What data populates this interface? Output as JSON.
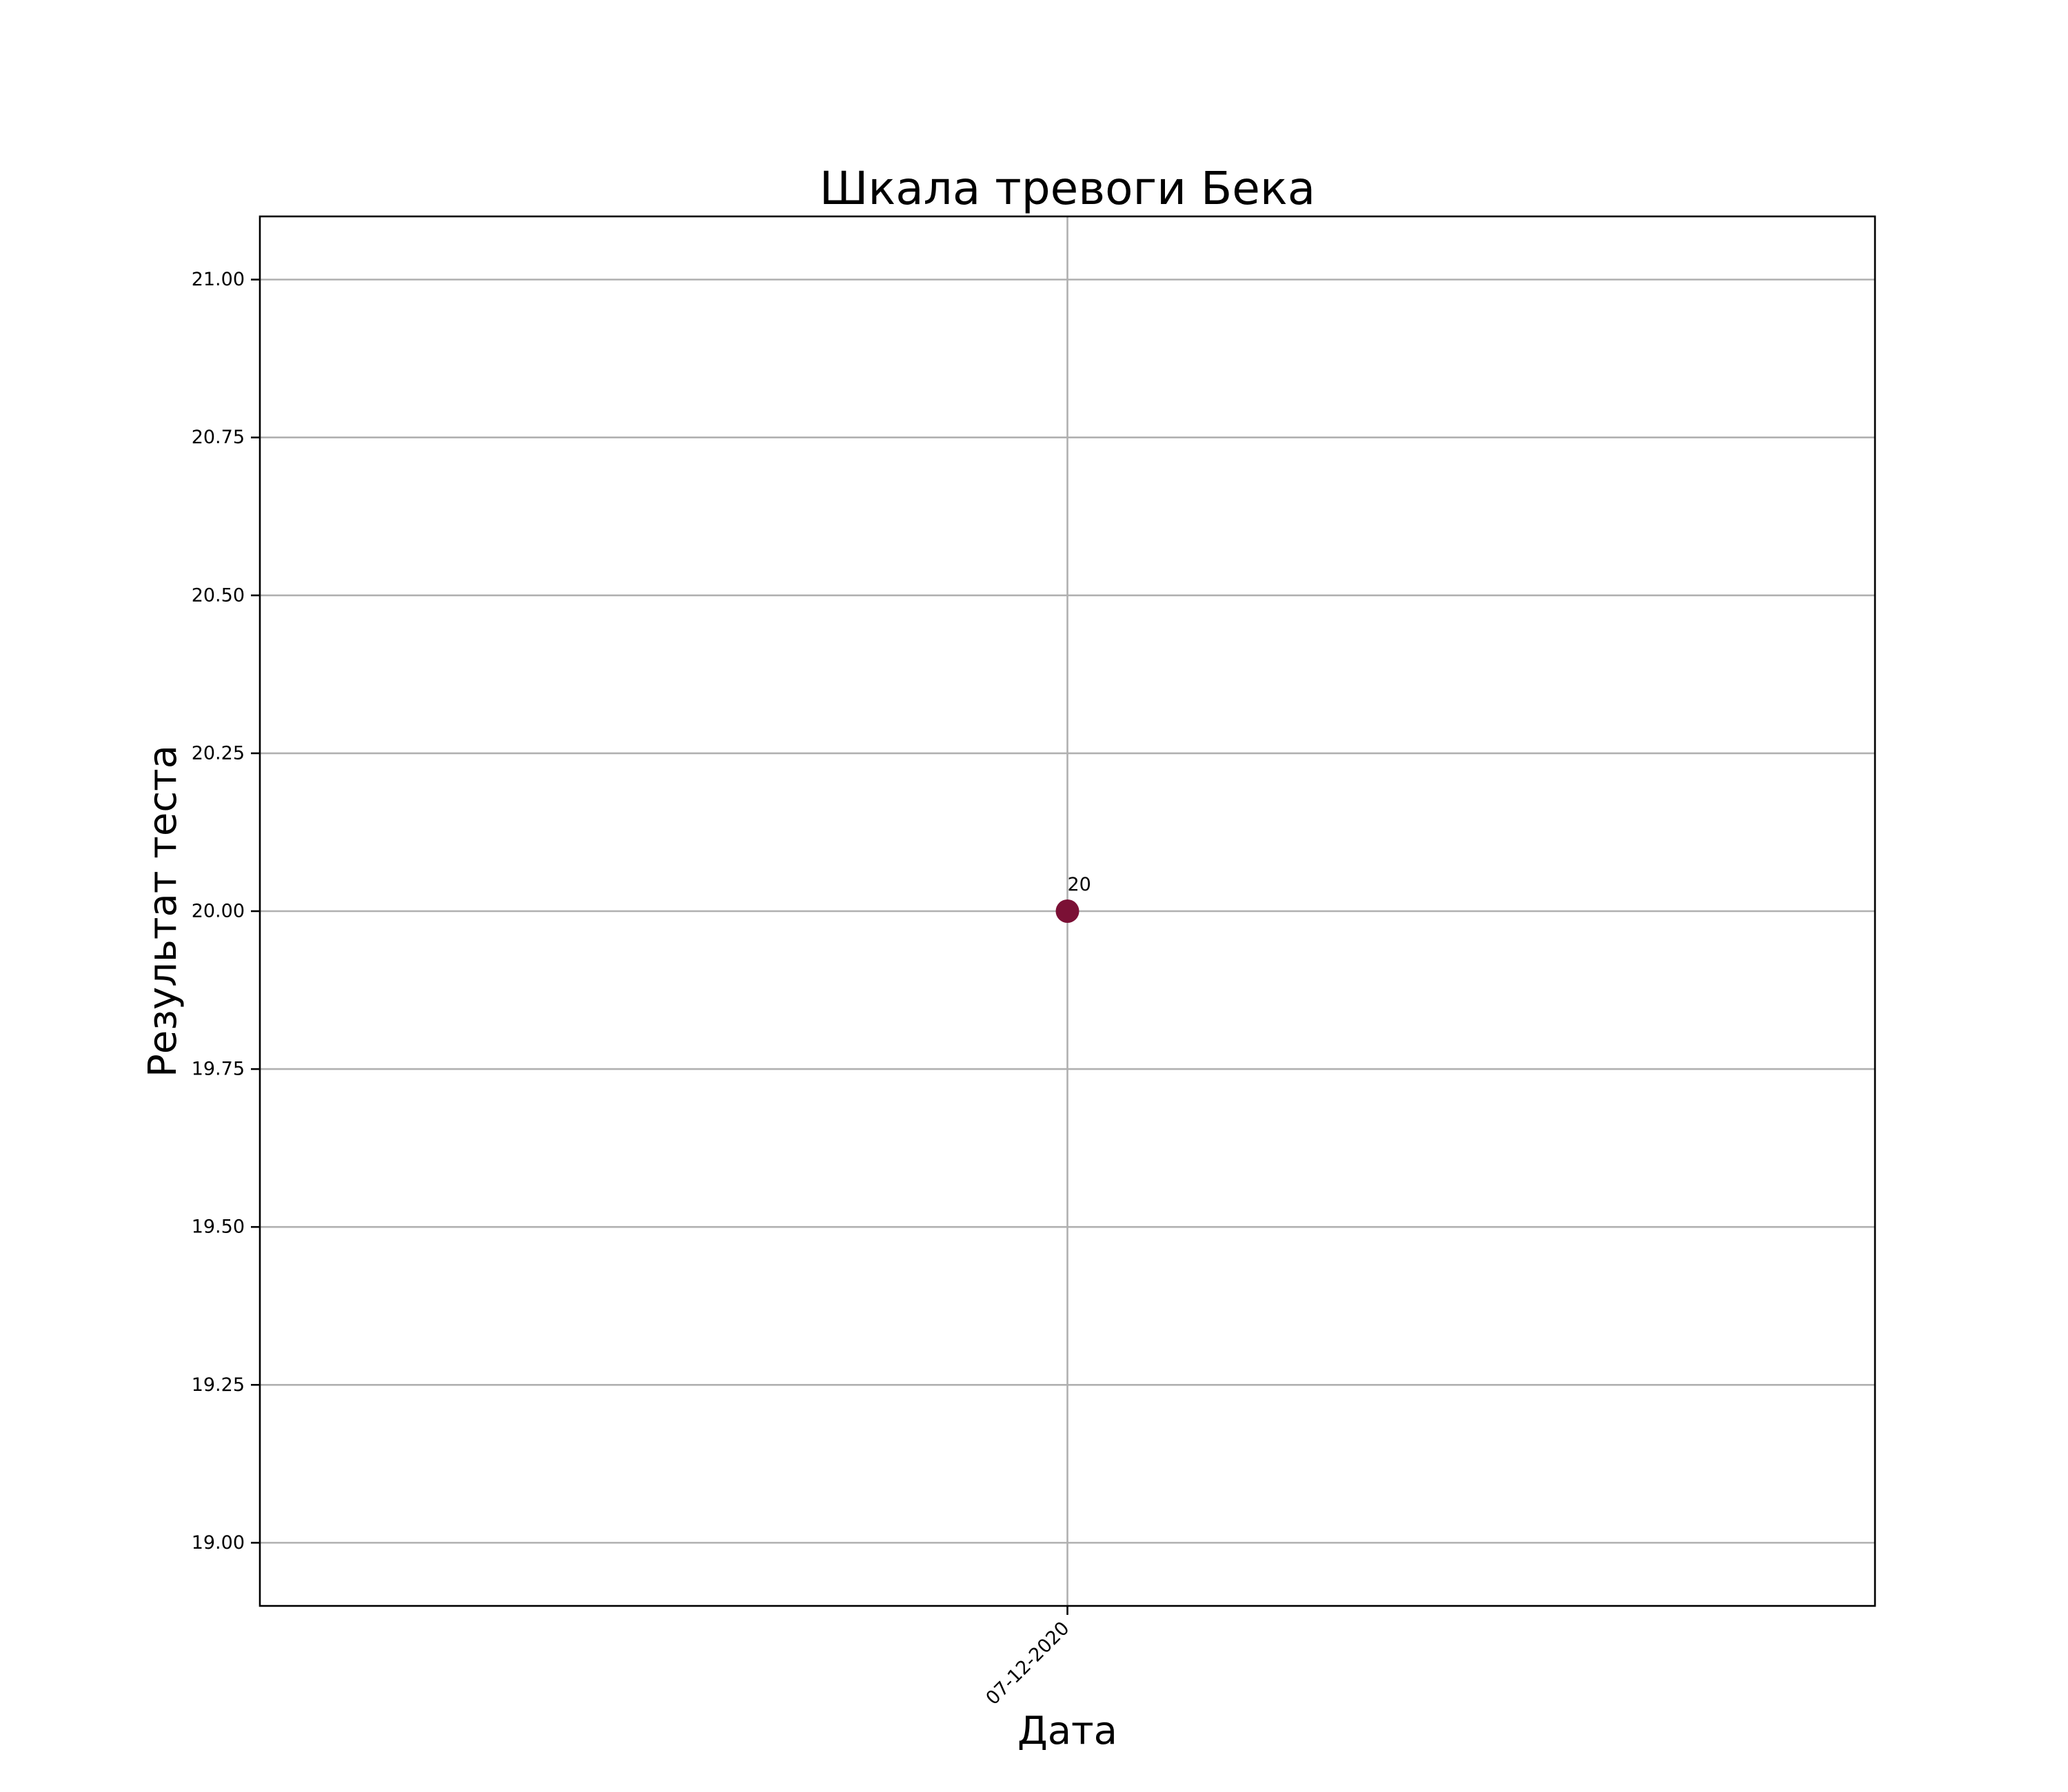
{
  "chart_data": {
    "type": "scatter",
    "title": "Шкала тревоги Бека",
    "xlabel": "Дата",
    "ylabel": "Результат теста",
    "x_categories": [
      "07-12-2020"
    ],
    "series": [
      {
        "points": [
          {
            "x": "07-12-2020",
            "y": 20,
            "label": "20"
          }
        ]
      }
    ],
    "ylim": [
      18.9,
      21.1
    ],
    "yticks": [
      19.0,
      19.25,
      19.5,
      19.75,
      20.0,
      20.25,
      20.5,
      20.75,
      21.0
    ],
    "ytick_labels": [
      "19.00",
      "19.25",
      "19.50",
      "19.75",
      "20.00",
      "20.25",
      "20.50",
      "20.75",
      "21.00"
    ],
    "grid": true,
    "colors": {
      "marker": "#7b1035",
      "grid": "#b0b0b0",
      "axes": "#000000"
    }
  }
}
